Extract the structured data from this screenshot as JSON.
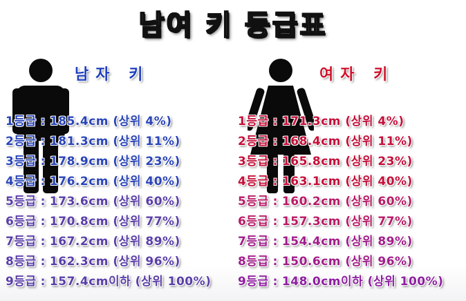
{
  "title": "남여 키 등급표",
  "colors": {
    "male_label": "#1f3fbf",
    "female_label": "#d0112b",
    "male_rows": [
      "#2a45b8",
      "#2a45b8",
      "#2a45b8",
      "#2a45b8",
      "#5a3fa8",
      "#5a3fa8",
      "#5a3fa8",
      "#5a3fa8",
      "#5a3fa8"
    ],
    "female_rows": [
      "#c4103a",
      "#c4103a",
      "#c4103a",
      "#c4103a",
      "#b81a66",
      "#b81a66",
      "#a11d8a",
      "#a11d8a",
      "#8e1fa0"
    ]
  },
  "male": {
    "label": "남자 키",
    "icon": "male-person-icon",
    "rows": [
      {
        "grade": "1등급",
        "sep": ":",
        "value": "185.4cm (상위 4%)"
      },
      {
        "grade": "2등급",
        "sep": ":",
        "value": "181.3cm (상위 11%)"
      },
      {
        "grade": "3등급",
        "sep": ":",
        "value": "178.9cm (상위 23%)"
      },
      {
        "grade": "4등급",
        "sep": ":",
        "value": "176.2cm (상위 40%)"
      },
      {
        "grade": "5등급",
        "sep": ":",
        "value": "173.6cm (상위 60%)"
      },
      {
        "grade": "6등급",
        "sep": ":",
        "value": "170.8cm (상위 77%)"
      },
      {
        "grade": "7등급",
        "sep": ":",
        "value": "167.2cm (상위 89%)"
      },
      {
        "grade": "8등급",
        "sep": ":",
        "value": "162.3cm (상위 96%)"
      },
      {
        "grade": "9등급",
        "sep": ":",
        "value": "157.4cm이하 (상위 100%)"
      }
    ]
  },
  "female": {
    "label": "여자 키",
    "icon": "female-person-icon",
    "rows": [
      {
        "grade": "1등급",
        "sep": ":",
        "value": "171.3cm (상위 4%)"
      },
      {
        "grade": "2등급",
        "sep": ":",
        "value": "168.4cm (상위 11%)"
      },
      {
        "grade": "3등급",
        "sep": ":",
        "value": "165.8cm (상위 23%)"
      },
      {
        "grade": "4등급",
        "sep": ":",
        "value": "163.1cm (상위 40%)"
      },
      {
        "grade": "5등급",
        "sep": ":",
        "value": "160.2cm (상위 60%)"
      },
      {
        "grade": "6등급",
        "sep": ":",
        "value": "157.3cm (상위 77%)"
      },
      {
        "grade": "7등급",
        "sep": ":",
        "value": "154.4cm (상위 89%)"
      },
      {
        "grade": "8등급",
        "sep": ":",
        "value": "150.6cm (상위 96%)"
      },
      {
        "grade": "9등급",
        "sep": ":",
        "value": "148.0cm이하 (상위 100%)"
      }
    ]
  }
}
